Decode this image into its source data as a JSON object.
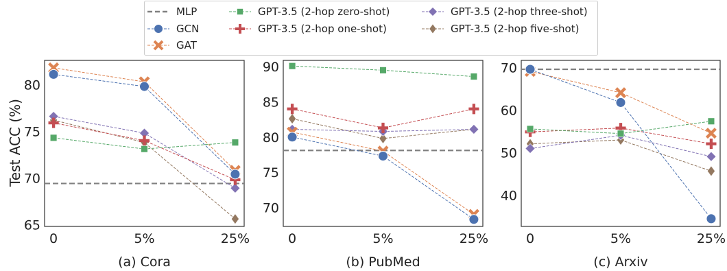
{
  "figure": {
    "ylabel": "Test ACC (%)"
  },
  "legend": {
    "entries": [
      {
        "key": "mlp",
        "label": "MLP"
      },
      {
        "key": "gcn",
        "label": "GCN"
      },
      {
        "key": "gat",
        "label": "GAT"
      },
      {
        "key": "zero",
        "label": "GPT-3.5 (2-hop zero-shot)"
      },
      {
        "key": "one",
        "label": "GPT-3.5 (2-hop one-shot)"
      },
      {
        "key": "three",
        "label": "GPT-3.5 (2-hop three-shot)"
      },
      {
        "key": "five",
        "label": "GPT-3.5 (2-hop five-shot)"
      }
    ]
  },
  "styles": {
    "mlp": {
      "color": "#808080",
      "marker": "none"
    },
    "gcn": {
      "color": "#4c72b0",
      "marker": "circle"
    },
    "gat": {
      "color": "#dd8452",
      "marker": "x"
    },
    "zero": {
      "color": "#55a868",
      "marker": "square"
    },
    "one": {
      "color": "#c44e52",
      "marker": "plus"
    },
    "three": {
      "color": "#8172b3",
      "marker": "diamond"
    },
    "five": {
      "color": "#937860",
      "marker": "thin-diamond"
    }
  },
  "chart_data": [
    {
      "type": "line",
      "title": "(a) Cora",
      "categories": [
        "0",
        "5%",
        "25%"
      ],
      "ylim": [
        64.8,
        82.6
      ],
      "yticks": [
        65,
        70,
        75,
        80
      ],
      "mlp": 69.4,
      "series": [
        {
          "key": "gcn",
          "name": "GCN",
          "values": [
            81.1,
            79.8,
            70.4
          ]
        },
        {
          "key": "gat",
          "name": "GAT",
          "values": [
            81.8,
            80.3,
            70.8
          ]
        },
        {
          "key": "zero",
          "name": "GPT-3.5 (2-hop zero-shot)",
          "values": [
            74.3,
            73.1,
            73.8
          ]
        },
        {
          "key": "one",
          "name": "GPT-3.5 (2-hop one-shot)",
          "values": [
            75.9,
            74.0,
            69.8
          ]
        },
        {
          "key": "three",
          "name": "GPT-3.5 (2-hop three-shot)",
          "values": [
            76.6,
            74.8,
            68.9
          ]
        },
        {
          "key": "five",
          "name": "GPT-3.5 (2-hop five-shot)",
          "values": [
            76.2,
            73.8,
            65.6
          ]
        }
      ]
    },
    {
      "type": "line",
      "title": "(b) PubMed",
      "categories": [
        "0",
        "5%",
        "25%"
      ],
      "ylim": [
        67.3,
        90.9
      ],
      "yticks": [
        70,
        75,
        80,
        85,
        90
      ],
      "mlp": 78.1,
      "series": [
        {
          "key": "gcn",
          "name": "GCN",
          "values": [
            80.0,
            77.3,
            68.3
          ]
        },
        {
          "key": "gat",
          "name": "GAT",
          "values": [
            80.7,
            78.0,
            69.0
          ]
        },
        {
          "key": "zero",
          "name": "GPT-3.5 (2-hop zero-shot)",
          "values": [
            90.1,
            89.5,
            88.6
          ]
        },
        {
          "key": "one",
          "name": "GPT-3.5 (2-hop one-shot)",
          "values": [
            84.0,
            81.3,
            84.0
          ]
        },
        {
          "key": "three",
          "name": "GPT-3.5 (2-hop three-shot)",
          "values": [
            81.1,
            80.8,
            81.1
          ]
        },
        {
          "key": "five",
          "name": "GPT-3.5 (2-hop five-shot)",
          "values": [
            82.6,
            79.8,
            81.1
          ]
        }
      ]
    },
    {
      "type": "line",
      "title": "(c) Arxiv",
      "categories": [
        "0",
        "5%",
        "25%"
      ],
      "ylim": [
        32.7,
        71.7
      ],
      "yticks": [
        40,
        50,
        60,
        70
      ],
      "mlp": 69.6,
      "series": [
        {
          "key": "gcn",
          "name": "GCN",
          "values": [
            69.6,
            61.8,
            34.5
          ]
        },
        {
          "key": "gat",
          "name": "GAT",
          "values": [
            69.1,
            64.1,
            54.6
          ]
        },
        {
          "key": "zero",
          "name": "GPT-3.5 (2-hop zero-shot)",
          "values": [
            55.6,
            54.5,
            57.4
          ]
        },
        {
          "key": "one",
          "name": "GPT-3.5 (2-hop one-shot)",
          "values": [
            54.9,
            55.8,
            52.1
          ]
        },
        {
          "key": "three",
          "name": "GPT-3.5 (2-hop three-shot)",
          "values": [
            51.0,
            54.1,
            49.1
          ]
        },
        {
          "key": "five",
          "name": "GPT-3.5 (2-hop five-shot)",
          "values": [
            52.1,
            53.0,
            45.7
          ]
        }
      ]
    }
  ]
}
